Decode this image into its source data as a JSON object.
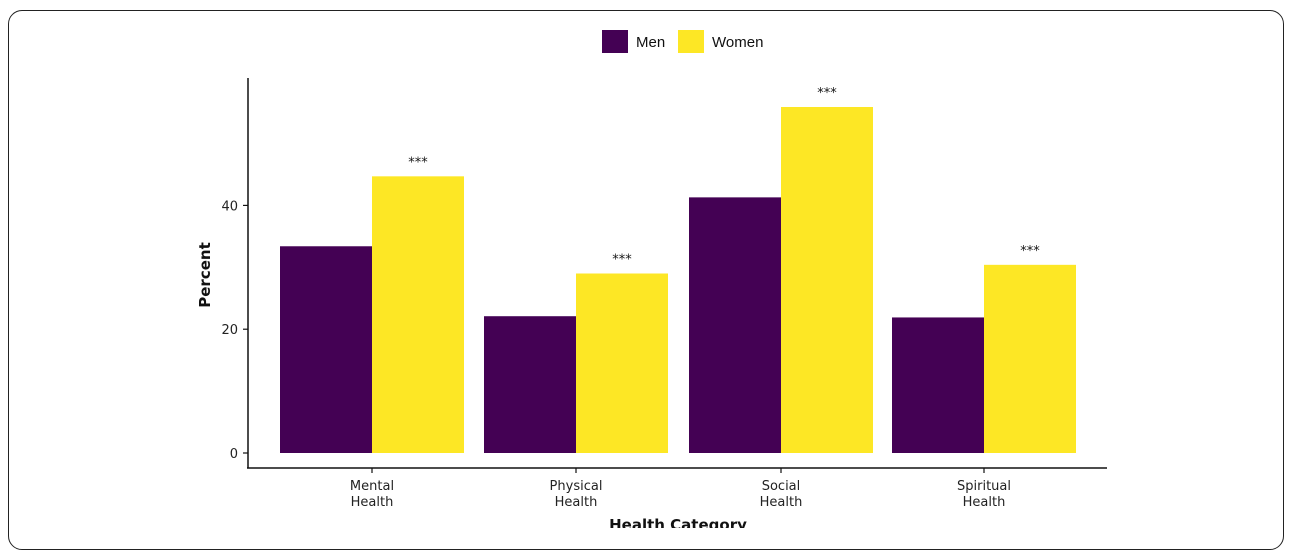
{
  "chart_data": {
    "type": "bar",
    "title": "",
    "xlabel": "Health Category",
    "ylabel": "Percent",
    "ylim": [
      0,
      58
    ],
    "yticks": [
      0,
      20,
      40
    ],
    "categories": [
      [
        "Mental",
        "Health"
      ],
      [
        "Physical",
        "Health"
      ],
      [
        "Social",
        "Health"
      ],
      [
        "Spiritual",
        "Health"
      ]
    ],
    "series": [
      {
        "name": "Men",
        "color": "#440154",
        "values": [
          33.4,
          22.1,
          41.3,
          21.9
        ]
      },
      {
        "name": "Women",
        "color": "#FDE725",
        "values": [
          44.7,
          29.0,
          55.9,
          30.4
        ]
      }
    ],
    "annotations": [
      "***",
      "***",
      "***",
      "***"
    ],
    "legend_position": "top-center",
    "grid": false
  }
}
